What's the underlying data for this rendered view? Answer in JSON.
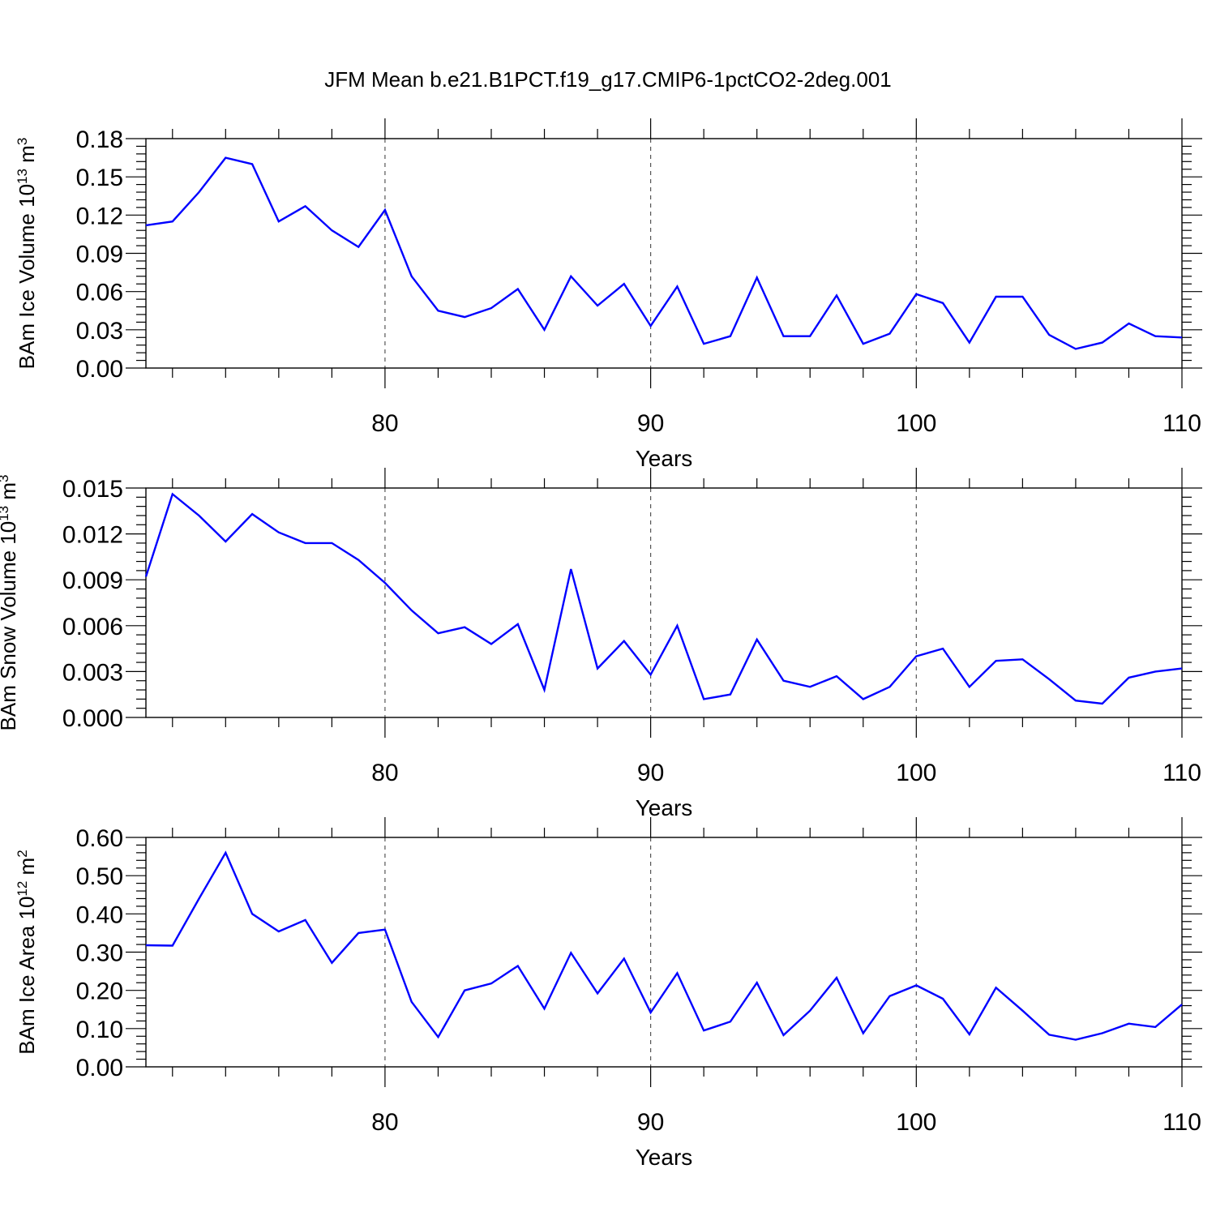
{
  "title": "JFM Mean b.e21.B1PCT.f19_g17.CMIP6-1pctCO2-2deg.001",
  "colors": {
    "line": "#0000ff",
    "axes": "#000000",
    "grid": "#555555"
  },
  "chart_data": [
    {
      "type": "line",
      "xlabel": "Years",
      "ylabel": {
        "prefix": "BAm Ice Volume 10",
        "exp": "13",
        "unit": " m",
        "unit_exp": "3"
      },
      "xlim": [
        71,
        110
      ],
      "ylim": [
        0,
        0.18
      ],
      "xticks": [
        80,
        90,
        100,
        110
      ],
      "xtick_labels": [
        "80",
        "90",
        "100",
        "110"
      ],
      "yticks": [
        0,
        0.03,
        0.06,
        0.09,
        0.12,
        0.15,
        0.18
      ],
      "ytick_labels": [
        "0.00",
        "0.03",
        "0.06",
        "0.09",
        "0.12",
        "0.15",
        "0.18"
      ],
      "grid_x": [
        80,
        90,
        100
      ],
      "x": [
        71,
        72,
        73,
        74,
        75,
        76,
        77,
        78,
        79,
        80,
        81,
        82,
        83,
        84,
        85,
        86,
        87,
        88,
        89,
        90,
        91,
        92,
        93,
        94,
        95,
        96,
        97,
        98,
        99,
        100,
        101,
        102,
        103,
        104,
        105,
        106,
        107,
        108,
        109,
        110
      ],
      "series": [
        {
          "values": [
            0.112,
            0.115,
            0.138,
            0.165,
            0.16,
            0.115,
            0.127,
            0.108,
            0.095,
            0.124,
            0.072,
            0.045,
            0.04,
            0.047,
            0.062,
            0.03,
            0.072,
            0.049,
            0.066,
            0.033,
            0.064,
            0.019,
            0.025,
            0.071,
            0.025,
            0.025,
            0.057,
            0.019,
            0.027,
            0.058,
            0.051,
            0.02,
            0.056,
            0.056,
            0.026,
            0.015,
            0.02,
            0.035,
            0.025,
            0.024
          ]
        }
      ]
    },
    {
      "type": "line",
      "xlabel": "Years",
      "ylabel": {
        "prefix": "BAm Snow Volume 10",
        "exp": "13",
        "unit": " m",
        "unit_exp": "3"
      },
      "xlim": [
        71,
        110
      ],
      "ylim": [
        0,
        0.015
      ],
      "xticks": [
        80,
        90,
        100,
        110
      ],
      "xtick_labels": [
        "80",
        "90",
        "100",
        "110"
      ],
      "yticks": [
        0,
        0.003,
        0.006,
        0.009,
        0.012,
        0.015
      ],
      "ytick_labels": [
        "0.000",
        "0.003",
        "0.006",
        "0.009",
        "0.012",
        "0.015"
      ],
      "grid_x": [
        80,
        90,
        100
      ],
      "x": [
        71,
        72,
        73,
        74,
        75,
        76,
        77,
        78,
        79,
        80,
        81,
        82,
        83,
        84,
        85,
        86,
        87,
        88,
        89,
        90,
        91,
        92,
        93,
        94,
        95,
        96,
        97,
        98,
        99,
        100,
        101,
        102,
        103,
        104,
        105,
        106,
        107,
        108,
        109,
        110
      ],
      "series": [
        {
          "values": [
            0.0092,
            0.0146,
            0.0132,
            0.0115,
            0.0133,
            0.0121,
            0.0114,
            0.0114,
            0.0103,
            0.0088,
            0.007,
            0.0055,
            0.0059,
            0.0048,
            0.0061,
            0.0018,
            0.0097,
            0.0032,
            0.005,
            0.0028,
            0.006,
            0.0012,
            0.0015,
            0.0051,
            0.0024,
            0.002,
            0.0027,
            0.0012,
            0.002,
            0.004,
            0.0045,
            0.002,
            0.0037,
            0.0038,
            0.0025,
            0.0011,
            0.0009,
            0.0026,
            0.003,
            0.0032
          ]
        }
      ]
    },
    {
      "type": "line",
      "xlabel": "Years",
      "ylabel": {
        "prefix": "BAm Ice Area 10",
        "exp": "12",
        "unit": " m",
        "unit_exp": "2"
      },
      "xlim": [
        71,
        110
      ],
      "ylim": [
        0,
        0.6
      ],
      "xticks": [
        80,
        90,
        100,
        110
      ],
      "xtick_labels": [
        "80",
        "90",
        "100",
        "110"
      ],
      "yticks": [
        0,
        0.1,
        0.2,
        0.3,
        0.4,
        0.5,
        0.6
      ],
      "ytick_labels": [
        "0.00",
        "0.10",
        "0.20",
        "0.30",
        "0.40",
        "0.50",
        "0.60"
      ],
      "grid_x": [
        80,
        90,
        100
      ],
      "x": [
        71,
        72,
        73,
        74,
        75,
        76,
        77,
        78,
        79,
        80,
        81,
        82,
        83,
        84,
        85,
        86,
        87,
        88,
        89,
        90,
        91,
        92,
        93,
        94,
        95,
        96,
        97,
        98,
        99,
        100,
        101,
        102,
        103,
        104,
        105,
        106,
        107,
        108,
        109,
        110
      ],
      "series": [
        {
          "values": [
            0.318,
            0.317,
            0.44,
            0.56,
            0.4,
            0.354,
            0.384,
            0.272,
            0.35,
            0.359,
            0.17,
            0.078,
            0.2,
            0.218,
            0.264,
            0.152,
            0.298,
            0.192,
            0.283,
            0.142,
            0.245,
            0.095,
            0.118,
            0.22,
            0.083,
            0.147,
            0.233,
            0.088,
            0.185,
            0.213,
            0.178,
            0.085,
            0.207,
            0.147,
            0.084,
            0.071,
            0.088,
            0.113,
            0.104,
            0.163
          ]
        }
      ]
    }
  ]
}
